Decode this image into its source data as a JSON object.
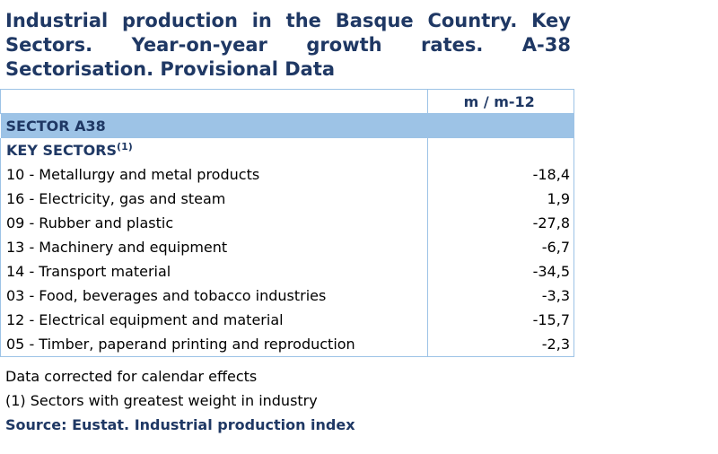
{
  "title": "Industrial production in the Basque Country. Key Sectors. Year-on-year growth rates. A-38 Sectorisation. Provisional Data",
  "table": {
    "column_header": "m / m-12",
    "sector_label": "SECTOR A38",
    "key_sectors_label": "KEY SECTORS",
    "key_sectors_note": "(1)",
    "rows": [
      {
        "label": "10 - Metallurgy and metal products",
        "value": "-18,4"
      },
      {
        "label": "16 - Electricity, gas and steam",
        "value": "1,9"
      },
      {
        "label": "09 - Rubber and plastic",
        "value": "-27,8"
      },
      {
        "label": "13 - Machinery and equipment",
        "value": "-6,7"
      },
      {
        "label": "14 - Transport material",
        "value": "-34,5"
      },
      {
        "label": "03 - Food, beverages and tobacco industries",
        "value": "-3,3"
      },
      {
        "label": "12 - Electrical equipment and material",
        "value": "-15,7"
      },
      {
        "label": "05 - Timber, paperand printing and reproduction",
        "value": "-2,3"
      }
    ]
  },
  "notes": {
    "calendar": "Data corrected for calendar effects",
    "footnote": "(1) Sectors with greatest weight in industry",
    "source": "Source: Eustat. Industrial production index"
  },
  "colors": {
    "title": "#1f3864",
    "sector_band": "#9dc3e6"
  }
}
